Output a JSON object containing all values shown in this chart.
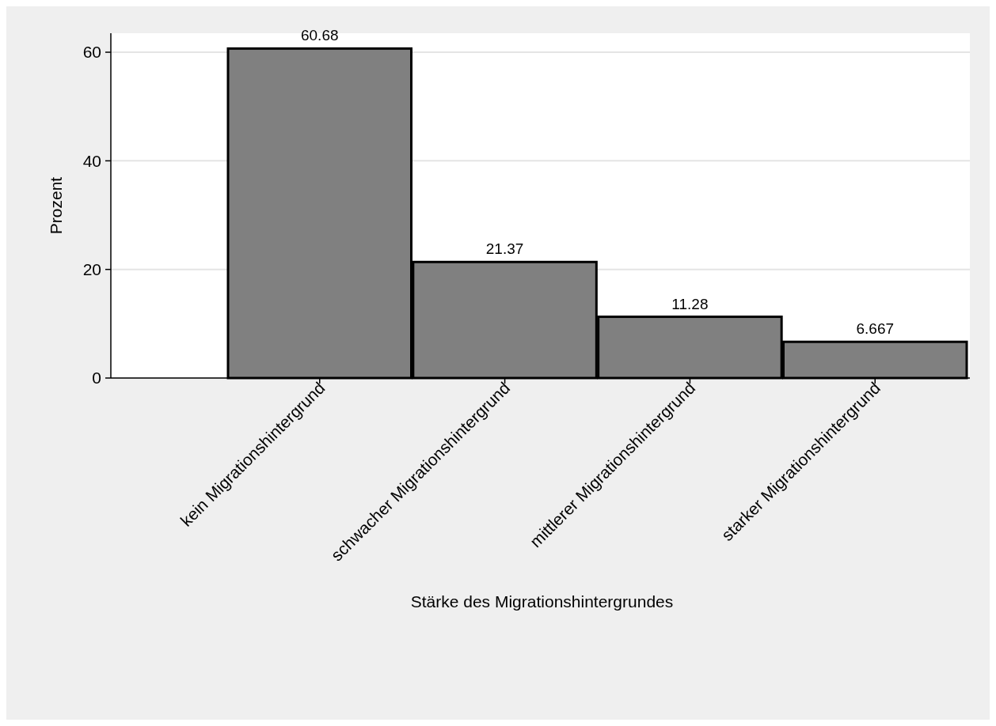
{
  "chart_data": {
    "type": "bar",
    "xlabel": "Stärke des Migrationshintergrundes",
    "ylabel": "Prozent",
    "categories": [
      "kein Migrationshintergrund",
      "schwacher Migrationshintergrund",
      "mittlerer Migrationshintergrund",
      "starker Migrationshintergrund"
    ],
    "values": [
      60.68,
      21.37,
      11.28,
      6.667
    ],
    "color": "#808080",
    "ylim": [
      0,
      63.5
    ],
    "yticks": [
      0,
      20,
      40,
      60
    ],
    "grid": "y",
    "data_labels": true
  }
}
